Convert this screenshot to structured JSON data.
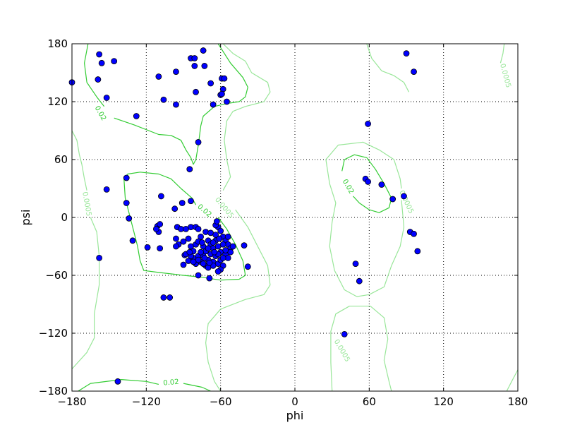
{
  "chart_data": {
    "type": "scatter",
    "title": "",
    "xlabel": "phi",
    "ylabel": "psi",
    "xlim": [
      -180,
      180
    ],
    "ylim": [
      -180,
      180
    ],
    "grid": true,
    "xticks": [
      -180,
      -120,
      -60,
      0,
      60,
      120,
      180
    ],
    "yticks": [
      -180,
      -120,
      -60,
      0,
      60,
      120,
      180
    ],
    "xtick_labels": [
      "−180",
      "−120",
      "−60",
      "0",
      "60",
      "120",
      "180"
    ],
    "ytick_labels": [
      "−180",
      "−120",
      "−60",
      "0",
      "60",
      "120",
      "180"
    ],
    "colors": {
      "points": "#0000ff",
      "contour_high": "#33cc33",
      "contour_low": "#99e699",
      "grid": "#000000"
    },
    "points": [
      [
        -180,
        140
      ],
      [
        -158,
        169
      ],
      [
        -156,
        160
      ],
      [
        -146,
        162
      ],
      [
        -159,
        143
      ],
      [
        -152,
        124
      ],
      [
        -128,
        105
      ],
      [
        -110,
        146
      ],
      [
        -106,
        122
      ],
      [
        -96,
        151
      ],
      [
        -96,
        117
      ],
      [
        -84,
        165
      ],
      [
        -81,
        165
      ],
      [
        -81,
        157
      ],
      [
        -74,
        173
      ],
      [
        -73,
        157
      ],
      [
        -80,
        130
      ],
      [
        -68,
        139
      ],
      [
        -66,
        117
      ],
      [
        -59,
        144
      ],
      [
        -57,
        144
      ],
      [
        -58,
        133
      ],
      [
        -60,
        127
      ],
      [
        -59,
        128
      ],
      [
        -55,
        120
      ],
      [
        -78,
        78
      ],
      [
        -85,
        50
      ],
      [
        -136,
        41
      ],
      [
        -152,
        29
      ],
      [
        -136,
        15
      ],
      [
        -134,
        -1
      ],
      [
        -131,
        -24
      ],
      [
        -108,
        22
      ],
      [
        -91,
        15
      ],
      [
        -84,
        17
      ],
      [
        -97,
        9
      ],
      [
        -158,
        -42
      ],
      [
        -143,
        -170
      ],
      [
        -106,
        -83
      ],
      [
        -101,
        -83
      ],
      [
        -119,
        -31
      ],
      [
        -109,
        -32
      ],
      [
        -111,
        -9
      ],
      [
        -110,
        -15
      ],
      [
        -109,
        -7
      ],
      [
        -112,
        -12
      ],
      [
        -38,
        -51
      ],
      [
        -41,
        -29
      ],
      [
        -90,
        -49
      ],
      [
        -89,
        -39
      ],
      [
        -78,
        -60
      ],
      [
        -69,
        -63
      ],
      [
        -95,
        -10
      ],
      [
        -92,
        -12
      ],
      [
        -88,
        -12
      ],
      [
        -84,
        -10
      ],
      [
        -80,
        -10
      ],
      [
        -78,
        -12
      ],
      [
        -76,
        -20
      ],
      [
        -72,
        -15
      ],
      [
        -68,
        -16
      ],
      [
        -64,
        -18
      ],
      [
        -62,
        -10
      ],
      [
        -60,
        -14
      ],
      [
        -58,
        -20
      ],
      [
        -56,
        -24
      ],
      [
        -54,
        -28
      ],
      [
        -52,
        -32
      ],
      [
        -96,
        -22
      ],
      [
        -94,
        -28
      ],
      [
        -90,
        -25
      ],
      [
        -86,
        -22
      ],
      [
        -84,
        -30
      ],
      [
        -82,
        -35
      ],
      [
        -80,
        -28
      ],
      [
        -78,
        -25
      ],
      [
        -74,
        -30
      ],
      [
        -72,
        -35
      ],
      [
        -70,
        -24
      ],
      [
        -68,
        -28
      ],
      [
        -66,
        -32
      ],
      [
        -64,
        -24
      ],
      [
        -62,
        -30
      ],
      [
        -60,
        -36
      ],
      [
        -58,
        -28
      ],
      [
        -56,
        -38
      ],
      [
        -54,
        -42
      ],
      [
        -52,
        -36
      ],
      [
        -88,
        -38
      ],
      [
        -86,
        -45
      ],
      [
        -82,
        -42
      ],
      [
        -80,
        -48
      ],
      [
        -78,
        -40
      ],
      [
        -76,
        -46
      ],
      [
        -74,
        -40
      ],
      [
        -72,
        -50
      ],
      [
        -70,
        -44
      ],
      [
        -68,
        -38
      ],
      [
        -66,
        -46
      ],
      [
        -64,
        -40
      ],
      [
        -62,
        -48
      ],
      [
        -60,
        -44
      ],
      [
        -58,
        -50
      ],
      [
        -56,
        -34
      ],
      [
        -76,
        -36
      ],
      [
        -70,
        -32
      ],
      [
        -66,
        -26
      ],
      [
        -62,
        -38
      ],
      [
        -60,
        -54
      ],
      [
        -62,
        -56
      ],
      [
        -70,
        -52
      ],
      [
        -74,
        -48
      ],
      [
        -78,
        -44
      ],
      [
        -82,
        -46
      ],
      [
        -84,
        -40
      ],
      [
        -66,
        -50
      ],
      [
        -58,
        -42
      ],
      [
        -64,
        -8
      ],
      [
        -63,
        -4
      ],
      [
        -96,
        -30
      ],
      [
        -50,
        -30
      ],
      [
        -54,
        -20
      ],
      [
        -73,
        -42
      ],
      [
        -69,
        -47
      ],
      [
        -65,
        -36
      ],
      [
        -61,
        -22
      ],
      [
        -75,
        -26
      ],
      [
        -85,
        -36
      ],
      [
        59,
        97
      ],
      [
        57,
        40
      ],
      [
        59,
        37
      ],
      [
        70,
        34
      ],
      [
        79,
        19
      ],
      [
        88,
        22
      ],
      [
        90,
        170
      ],
      [
        96,
        151
      ],
      [
        93,
        -15
      ],
      [
        96,
        -17
      ],
      [
        99,
        -35
      ],
      [
        49,
        -48
      ],
      [
        52,
        -66
      ],
      [
        40,
        -121
      ]
    ],
    "contours": [
      {
        "level": "0.02",
        "points": [
          [
            -167,
            180
          ],
          [
            -170,
            160
          ],
          [
            -168,
            140
          ],
          [
            -160,
            125
          ],
          [
            -154,
            115
          ]
        ]
      },
      {
        "level": "0.02",
        "points": [
          [
            -146,
            103
          ],
          [
            -130,
            96
          ],
          [
            -110,
            86
          ],
          [
            -100,
            85
          ],
          [
            -92,
            80
          ],
          [
            -88,
            70
          ],
          [
            -84,
            62
          ],
          [
            -82,
            55
          ],
          [
            -80,
            60
          ],
          [
            -78,
            75
          ],
          [
            -76,
            95
          ],
          [
            -74,
            105
          ],
          [
            -65,
            115
          ],
          [
            -55,
            118
          ],
          [
            -45,
            120
          ],
          [
            -40,
            125
          ],
          [
            -38,
            135
          ],
          [
            -42,
            145
          ],
          [
            -52,
            160
          ],
          [
            -62,
            180
          ]
        ]
      },
      {
        "level": "0.02",
        "points": [
          [
            -80,
            13
          ],
          [
            -83,
            20
          ],
          [
            -92,
            30
          ],
          [
            -100,
            40
          ],
          [
            -110,
            45
          ],
          [
            -125,
            47
          ],
          [
            -135,
            45
          ],
          [
            -138,
            40
          ],
          [
            -137,
            20
          ],
          [
            -133,
            0
          ],
          [
            -130,
            -15
          ],
          [
            -127,
            -30
          ],
          [
            -125,
            -45
          ],
          [
            -122,
            -55
          ],
          [
            -110,
            -57
          ],
          [
            -90,
            -60
          ],
          [
            -75,
            -62
          ],
          [
            -60,
            -65
          ],
          [
            -45,
            -64
          ],
          [
            -40,
            -60
          ],
          [
            -42,
            -45
          ],
          [
            -48,
            -28
          ],
          [
            -55,
            -12
          ],
          [
            -62,
            0
          ]
        ]
      },
      {
        "level": "0.02",
        "points": [
          [
            38,
            48
          ],
          [
            40,
            60
          ],
          [
            48,
            65
          ],
          [
            58,
            62
          ],
          [
            65,
            50
          ],
          [
            72,
            35
          ],
          [
            78,
            20
          ],
          [
            76,
            10
          ],
          [
            68,
            5
          ],
          [
            60,
            8
          ],
          [
            52,
            15
          ],
          [
            47,
            22
          ]
        ]
      },
      {
        "level": "0.02",
        "points": [
          [
            -175,
            -180
          ],
          [
            -165,
            -172
          ],
          [
            -140,
            -168
          ],
          [
            -120,
            -170
          ],
          [
            -110,
            -173
          ]
        ]
      },
      {
        "level": "0.02",
        "points": [
          [
            -90,
            -172
          ],
          [
            -75,
            -176
          ],
          [
            -68,
            -180
          ]
        ]
      },
      {
        "level": "0.0005",
        "points": [
          [
            -180,
            90
          ],
          [
            -176,
            80
          ],
          [
            -174,
            65
          ],
          [
            -172,
            55
          ],
          [
            -170,
            40
          ],
          [
            -168,
            28
          ]
        ]
      },
      {
        "level": "0.0005",
        "points": [
          [
            -165,
            0
          ],
          [
            -160,
            -15
          ],
          [
            -158,
            -40
          ],
          [
            -158,
            -70
          ],
          [
            -160,
            -85
          ],
          [
            -162,
            -100
          ],
          [
            -162,
            -125
          ],
          [
            -168,
            -140
          ],
          [
            -180,
            -157
          ]
        ]
      },
      {
        "level": "0.0005",
        "points": [
          [
            -58,
            180
          ],
          [
            -50,
            170
          ],
          [
            -40,
            162
          ],
          [
            -35,
            150
          ],
          [
            -22,
            140
          ],
          [
            -20,
            130
          ],
          [
            -25,
            120
          ],
          [
            -40,
            115
          ],
          [
            -50,
            110
          ],
          [
            -55,
            100
          ],
          [
            -57,
            80
          ],
          [
            -55,
            60
          ],
          [
            -52,
            42
          ],
          [
            -58,
            28
          ]
        ]
      },
      {
        "level": "0.0005",
        "points": [
          [
            -48,
            8
          ],
          [
            -38,
            -10
          ],
          [
            -30,
            -30
          ],
          [
            -22,
            -50
          ],
          [
            -20,
            -70
          ],
          [
            -25,
            -80
          ],
          [
            -40,
            -85
          ],
          [
            -60,
            -95
          ],
          [
            -70,
            -110
          ],
          [
            -72,
            -130
          ],
          [
            -70,
            -150
          ],
          [
            -65,
            -170
          ],
          [
            -60,
            -180
          ]
        ]
      },
      {
        "level": "0.0005",
        "points": [
          [
            86,
            18
          ],
          [
            88,
            -10
          ],
          [
            85,
            -30
          ],
          [
            78,
            -50
          ],
          [
            72,
            -72
          ],
          [
            60,
            -80
          ],
          [
            50,
            -82
          ],
          [
            40,
            -75
          ],
          [
            32,
            -55
          ],
          [
            28,
            -30
          ],
          [
            30,
            -5
          ],
          [
            33,
            15
          ],
          [
            28,
            35
          ],
          [
            25,
            60
          ],
          [
            35,
            75
          ],
          [
            55,
            78
          ],
          [
            68,
            70
          ],
          [
            80,
            60
          ],
          [
            85,
            40
          ],
          [
            86,
            30
          ]
        ]
      },
      {
        "level": "0.0005",
        "points": [
          [
            58,
            180
          ],
          [
            62,
            165
          ],
          [
            70,
            152
          ],
          [
            80,
            147
          ],
          [
            88,
            140
          ],
          [
            92,
            130
          ]
        ]
      },
      {
        "level": "0.0005",
        "points": [
          [
            169,
            180
          ],
          [
            168,
            170
          ],
          [
            166,
            160
          ]
        ]
      },
      {
        "level": "0.0005",
        "points": [
          [
            30,
            -180
          ],
          [
            29,
            -150
          ],
          [
            29,
            -118
          ],
          [
            33,
            -100
          ],
          [
            44,
            -92
          ],
          [
            61,
            -92
          ],
          [
            72,
            -104
          ],
          [
            75,
            -126
          ],
          [
            72,
            -148
          ],
          [
            76,
            -170
          ],
          [
            78,
            -180
          ]
        ]
      },
      {
        "level": "0.0005",
        "points": [
          [
            171,
            -180
          ],
          [
            175,
            -170
          ],
          [
            180,
            -158
          ]
        ]
      }
    ],
    "contour_labels": [
      {
        "text": "0.02",
        "phi": -157,
        "psi": 108
      },
      {
        "text": "0.02",
        "phi": -73,
        "psi": 7
      },
      {
        "text": "0.02",
        "phi": 43,
        "psi": 32
      },
      {
        "text": "0.02",
        "phi": -100,
        "psi": -171
      },
      {
        "text": "0.0005",
        "phi": -168,
        "psi": 14
      },
      {
        "text": "0.0005",
        "phi": -57,
        "psi": 10
      },
      {
        "text": "0.0005",
        "phi": 90,
        "psi": 16
      },
      {
        "text": "0.0005",
        "phi": 170,
        "psi": 147
      },
      {
        "text": "0.0005",
        "phi": 38,
        "psi": -138
      }
    ]
  }
}
